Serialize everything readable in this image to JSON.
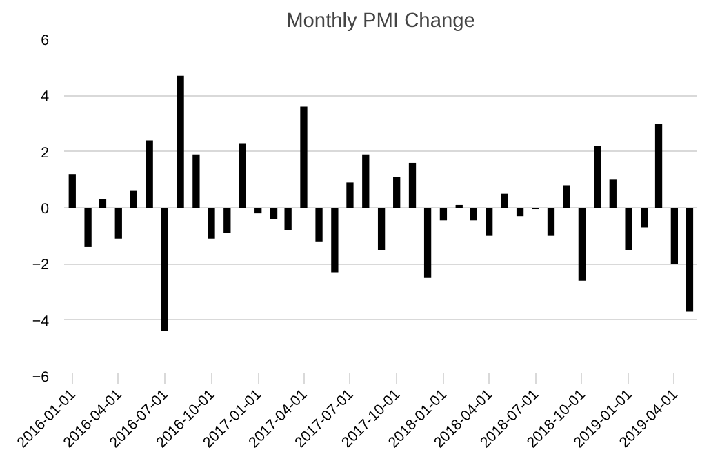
{
  "chart_data": {
    "type": "bar",
    "title": "Monthly PMI Change",
    "x": [
      "2016-01-01",
      "2016-02-01",
      "2016-03-01",
      "2016-04-01",
      "2016-05-01",
      "2016-06-01",
      "2016-07-01",
      "2016-08-01",
      "2016-09-01",
      "2016-10-01",
      "2016-11-01",
      "2016-12-01",
      "2017-01-01",
      "2017-02-01",
      "2017-03-01",
      "2017-04-01",
      "2017-05-01",
      "2017-06-01",
      "2017-07-01",
      "2017-08-01",
      "2017-09-01",
      "2017-10-01",
      "2017-11-01",
      "2017-12-01",
      "2018-01-01",
      "2018-02-01",
      "2018-03-01",
      "2018-04-01",
      "2018-05-01",
      "2018-06-01",
      "2018-07-01",
      "2018-08-01",
      "2018-09-01",
      "2018-10-01",
      "2018-11-01",
      "2018-12-01",
      "2019-01-01",
      "2019-02-01",
      "2019-03-01",
      "2019-04-01",
      "2019-05-01"
    ],
    "values": [
      1.2,
      -1.4,
      0.3,
      -1.1,
      0.6,
      2.4,
      -4.4,
      4.7,
      1.9,
      -1.1,
      -0.9,
      2.3,
      -0.2,
      -0.4,
      -0.8,
      3.6,
      -1.2,
      -2.3,
      0.9,
      1.9,
      -1.5,
      1.1,
      1.6,
      -2.5,
      -0.45,
      0.1,
      -0.45,
      -1.0,
      0.5,
      -0.3,
      -0.05,
      -1.0,
      0.8,
      -2.6,
      2.2,
      1.0,
      -1.5,
      -0.7,
      3.0,
      -2.0,
      -3.7
    ],
    "color": "#000000",
    "xlim": [
      "2015-12-16",
      "2019-05-16"
    ],
    "xticks": [
      "2016-01-01",
      "2016-04-01",
      "2016-07-01",
      "2016-10-01",
      "2017-01-01",
      "2017-04-01",
      "2017-07-01",
      "2017-10-01",
      "2018-01-01",
      "2018-04-01",
      "2018-07-01",
      "2018-10-01",
      "2019-01-01",
      "2019-04-01"
    ],
    "ylim": [
      -6,
      6
    ],
    "yticks": [
      -6,
      -4,
      -2,
      0,
      2,
      4,
      6
    ],
    "grid": "y"
  }
}
